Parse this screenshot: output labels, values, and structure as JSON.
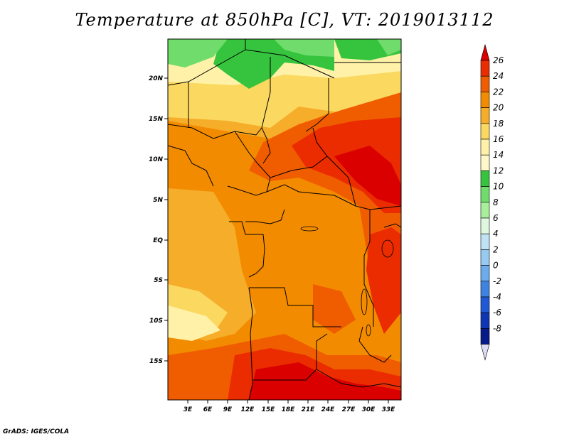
{
  "title": "Temperature at 850hPa [C], VT: 2019013112",
  "credit": "GrADS: IGES/COLA",
  "map": {
    "lat_ticks": [
      "20N",
      "15N",
      "10N",
      "5N",
      "EQ",
      "5S",
      "10S",
      "15S"
    ],
    "lon_ticks": [
      "3E",
      "6E",
      "9E",
      "12E",
      "15E",
      "18E",
      "21E",
      "24E",
      "27E",
      "30E",
      "33E"
    ]
  },
  "colorbar": {
    "labels": [
      "26",
      "24",
      "22",
      "20",
      "18",
      "16",
      "14",
      "12",
      "10",
      "8",
      "6",
      "4",
      "2",
      "0",
      "-2",
      "-4",
      "-6",
      "-8"
    ],
    "colors": [
      "#da0000",
      "#ea2c00",
      "#f05d00",
      "#f38b00",
      "#f5ad2a",
      "#fbd860",
      "#fff2a8",
      "#fef8c8",
      "#36c43e",
      "#6fdc6c",
      "#a8ef9c",
      "#dff7de",
      "#bfe3f5",
      "#96caf0",
      "#6cabec",
      "#3f83e2",
      "#2059d6",
      "#0e36b4",
      "#061a8a",
      "#dcdcf5"
    ]
  }
}
